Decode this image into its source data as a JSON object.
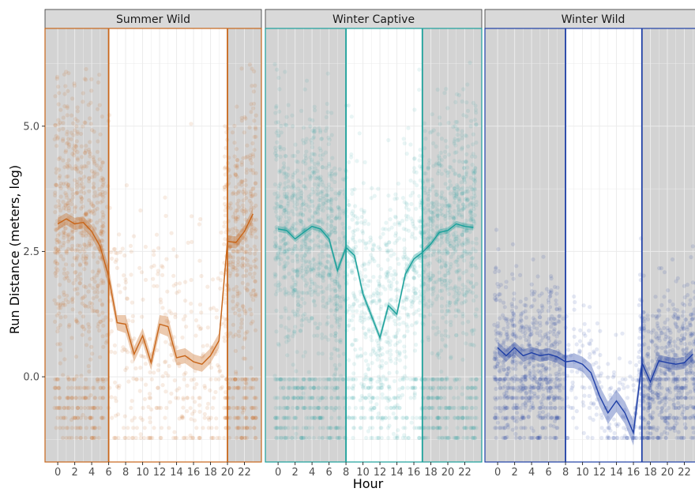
{
  "chart_data": {
    "type": "scatter",
    "xlabel": "Hour",
    "ylabel": "Run Distance (meters, log)",
    "xlim": [
      -1.5,
      24
    ],
    "ylim": [
      -1.7,
      6.95
    ],
    "x_ticks": [
      0,
      2,
      4,
      6,
      8,
      10,
      12,
      14,
      16,
      18,
      20,
      22
    ],
    "y_ticks": [
      0.0,
      2.5,
      5.0
    ],
    "y_tick_labels": [
      "0.0",
      "2.5",
      "5.0"
    ],
    "grid": true,
    "legend": "none",
    "panels": [
      {
        "name": "Summer Wild",
        "color": "#c8661a",
        "day_start": 6,
        "day_end": 20,
        "point_density": "high at night, sparse in daylight",
        "series": {
          "name": "Summer Wild",
          "x": [
            0,
            1,
            2,
            3,
            4,
            5,
            6,
            7,
            8,
            9,
            10,
            11,
            12,
            13,
            14,
            15,
            16,
            17,
            18,
            19,
            20,
            21,
            22,
            23
          ],
          "y": [
            3.05,
            3.15,
            3.05,
            3.08,
            2.9,
            2.6,
            2.0,
            1.08,
            1.05,
            0.45,
            0.82,
            0.28,
            1.05,
            1.0,
            0.38,
            0.42,
            0.3,
            0.25,
            0.42,
            0.72,
            2.7,
            2.68,
            2.9,
            3.25
          ],
          "ci": [
            0.12,
            0.12,
            0.12,
            0.12,
            0.12,
            0.15,
            0.2,
            0.15,
            0.18,
            0.15,
            0.15,
            0.15,
            0.18,
            0.2,
            0.15,
            0.15,
            0.15,
            0.15,
            0.15,
            0.15,
            0.12,
            0.12,
            0.12,
            0.12
          ]
        }
      },
      {
        "name": "Winter Captive",
        "color": "#1ba19b",
        "day_start": 8,
        "day_end": 17,
        "point_density": "high throughout, lighter during day",
        "series": {
          "name": "Winter Captive",
          "x": [
            0,
            1,
            2,
            3,
            4,
            5,
            6,
            7,
            8,
            9,
            10,
            11,
            12,
            13,
            14,
            15,
            16,
            17,
            18,
            19,
            20,
            21,
            22,
            23
          ],
          "y": [
            2.95,
            2.92,
            2.75,
            2.88,
            3.0,
            2.95,
            2.75,
            2.12,
            2.58,
            2.42,
            1.65,
            1.22,
            0.78,
            1.42,
            1.25,
            2.05,
            2.35,
            2.48,
            2.65,
            2.88,
            2.92,
            3.05,
            3.0,
            2.98
          ],
          "ci": [
            0.06,
            0.06,
            0.06,
            0.06,
            0.06,
            0.06,
            0.08,
            0.08,
            0.08,
            0.08,
            0.08,
            0.08,
            0.08,
            0.08,
            0.08,
            0.08,
            0.08,
            0.06,
            0.06,
            0.06,
            0.06,
            0.06,
            0.06,
            0.06
          ]
        }
      },
      {
        "name": "Winter Wild",
        "color": "#1f3fa6",
        "day_start": 8,
        "day_end": 17,
        "point_density": "moderate at night, sparse in daylight",
        "series": {
          "name": "Winter Wild",
          "x": [
            0,
            1,
            2,
            3,
            4,
            5,
            6,
            7,
            8,
            9,
            10,
            11,
            12,
            13,
            14,
            15,
            16,
            17,
            18,
            19,
            20,
            21,
            22,
            23
          ],
          "y": [
            0.58,
            0.42,
            0.58,
            0.42,
            0.48,
            0.42,
            0.45,
            0.4,
            0.3,
            0.32,
            0.25,
            0.08,
            -0.38,
            -0.72,
            -0.48,
            -0.72,
            -1.12,
            0.28,
            -0.1,
            0.32,
            0.28,
            0.25,
            0.28,
            0.45
          ],
          "ci": [
            0.12,
            0.12,
            0.12,
            0.12,
            0.12,
            0.12,
            0.12,
            0.12,
            0.12,
            0.15,
            0.15,
            0.18,
            0.2,
            0.22,
            0.22,
            0.22,
            0.25,
            0.12,
            0.12,
            0.12,
            0.12,
            0.12,
            0.12,
            0.12
          ]
        }
      }
    ]
  }
}
